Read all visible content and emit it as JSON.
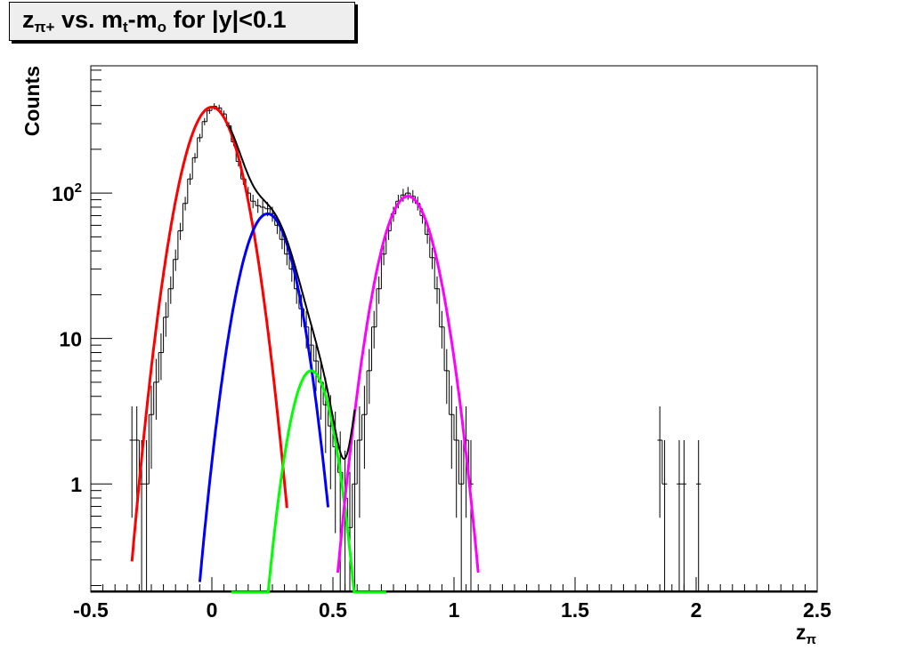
{
  "title": {
    "part1": "z",
    "sub1": "π+",
    "part2": " vs. m",
    "sub2": "t",
    "part3": "-m",
    "sub3": "o",
    "part4": " for |y|<0.1"
  },
  "chart_data": {
    "type": "line",
    "ylog": true,
    "grid": false,
    "xlabel": "z",
    "xlabel_sub": "π",
    "ylabel": "Counts",
    "xlim": [
      -0.5,
      2.5
    ],
    "ylim": [
      0.18,
      750
    ],
    "x_ticks": [
      "-0.5",
      "0",
      "0.5",
      "1",
      "1.5",
      "2",
      "2.5"
    ],
    "x_tick_values": [
      -0.5,
      0,
      0.5,
      1,
      1.5,
      2,
      2.5
    ],
    "y_ticks": [
      {
        "value": 1,
        "label": "1",
        "sup": ""
      },
      {
        "value": 10,
        "label": "10",
        "sup": ""
      },
      {
        "value": 100,
        "label": "10",
        "sup": "2"
      }
    ],
    "histogram": {
      "name": "",
      "color": "#000000",
      "points": [
        [
          -0.33,
          2
        ],
        [
          -0.31,
          2
        ],
        [
          -0.29,
          1
        ],
        [
          -0.27,
          1
        ],
        [
          -0.25,
          3
        ],
        [
          -0.23,
          5
        ],
        [
          -0.21,
          8
        ],
        [
          -0.19,
          14
        ],
        [
          -0.17,
          22
        ],
        [
          -0.15,
          35
        ],
        [
          -0.13,
          55
        ],
        [
          -0.11,
          85
        ],
        [
          -0.09,
          125
        ],
        [
          -0.07,
          175
        ],
        [
          -0.05,
          240
        ],
        [
          -0.03,
          310
        ],
        [
          -0.01,
          370
        ],
        [
          0.01,
          395
        ],
        [
          0.03,
          385
        ],
        [
          0.05,
          350
        ],
        [
          0.07,
          290
        ],
        [
          0.09,
          225
        ],
        [
          0.11,
          165
        ],
        [
          0.13,
          125
        ],
        [
          0.15,
          100
        ],
        [
          0.17,
          88
        ],
        [
          0.19,
          82
        ],
        [
          0.21,
          80
        ],
        [
          0.23,
          78
        ],
        [
          0.25,
          72
        ],
        [
          0.27,
          60
        ],
        [
          0.29,
          48
        ],
        [
          0.31,
          38
        ],
        [
          0.33,
          30
        ],
        [
          0.35,
          22
        ],
        [
          0.37,
          16
        ],
        [
          0.39,
          12
        ],
        [
          0.41,
          9
        ],
        [
          0.43,
          7
        ],
        [
          0.45,
          5
        ],
        [
          0.47,
          3.5
        ],
        [
          0.49,
          2.5
        ],
        [
          0.51,
          1.8
        ],
        [
          0.53,
          1.2
        ],
        [
          0.55,
          0.8
        ],
        [
          0.57,
          0.5
        ],
        [
          0.59,
          1
        ],
        [
          0.61,
          2
        ],
        [
          0.63,
          3
        ],
        [
          0.65,
          6
        ],
        [
          0.67,
          12
        ],
        [
          0.69,
          22
        ],
        [
          0.71,
          38
        ],
        [
          0.73,
          55
        ],
        [
          0.75,
          72
        ],
        [
          0.77,
          88
        ],
        [
          0.79,
          97
        ],
        [
          0.81,
          100
        ],
        [
          0.83,
          95
        ],
        [
          0.85,
          85
        ],
        [
          0.87,
          70
        ],
        [
          0.89,
          52
        ],
        [
          0.91,
          36
        ],
        [
          0.93,
          22
        ],
        [
          0.95,
          12
        ],
        [
          0.97,
          6
        ],
        [
          0.99,
          3
        ],
        [
          1.01,
          2
        ],
        [
          1.03,
          1
        ],
        [
          1.05,
          2
        ],
        [
          1.07,
          1
        ],
        [
          1.85,
          2
        ],
        [
          1.87,
          1
        ],
        [
          1.93,
          1
        ],
        [
          1.95,
          1
        ],
        [
          2.01,
          1
        ]
      ]
    },
    "fits": [
      {
        "name": "",
        "color": "#ff0000",
        "amp": 390,
        "mean": 0.0,
        "sigma": 0.087,
        "xmin": -0.33,
        "xmax": 0.31
      },
      {
        "name": "",
        "color": "#0000ff",
        "amp": 72,
        "mean": 0.23,
        "sigma": 0.082,
        "xmin": -0.05,
        "xmax": 0.48
      },
      {
        "name": "",
        "color": "#00ff00",
        "amp": 6,
        "mean": 0.41,
        "sigma": 0.067,
        "xmin": 0.08,
        "xmax": 0.72
      },
      {
        "name": "",
        "color": "#ff00ff",
        "amp": 95,
        "mean": 0.81,
        "sigma": 0.084,
        "xmin": 0.52,
        "xmax": 1.1
      },
      {
        "name": "",
        "color": "#000000",
        "type": "sum",
        "xmin": 0.07,
        "xmax": 0.59
      }
    ]
  }
}
